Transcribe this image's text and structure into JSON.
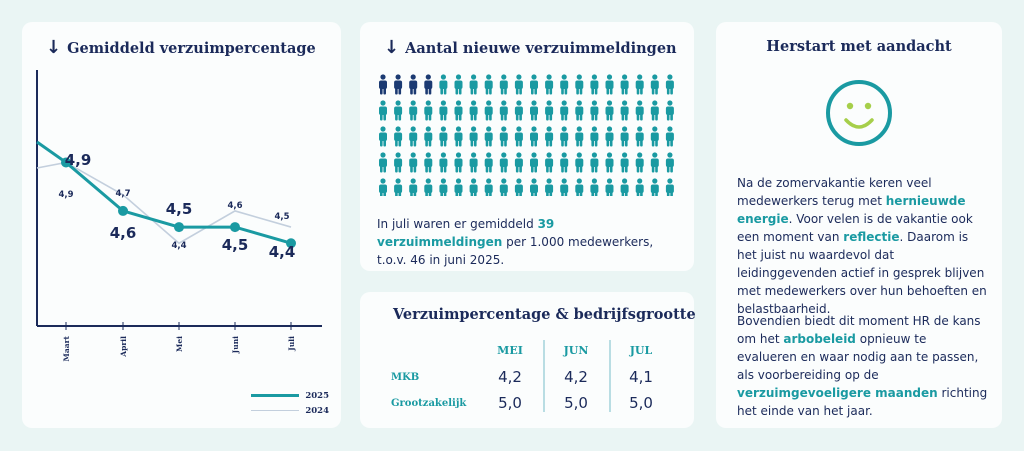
{
  "chart_card": {
    "title": "Gemiddeld verzuimpercentage",
    "arrow": "↓"
  },
  "chart_data": {
    "type": "line",
    "title": "Gemiddeld verzuimpercentage",
    "categories": [
      "Maart",
      "April",
      "Mei",
      "Juni",
      "Juli"
    ],
    "series": [
      {
        "name": "2025",
        "color": "#1a9aa2",
        "values": [
          4.9,
          4.6,
          4.5,
          4.5,
          4.4
        ],
        "labels": [
          "4,9",
          "4,6",
          "4,5",
          "4,5",
          "4,4"
        ]
      },
      {
        "name": "2024",
        "color": "#c3cfdd",
        "values": [
          4.9,
          4.7,
          4.4,
          4.6,
          4.5
        ],
        "labels": [
          "4,9",
          "4,7",
          "4,4",
          "4,6",
          "4,5"
        ]
      }
    ],
    "ylim": [
      3.9,
      5.2
    ],
    "legend": [
      "2025",
      "2024"
    ]
  },
  "people_card": {
    "title": "Aantal nieuwe verzuimmeldingen",
    "arrow": "↓",
    "dark_count": 4,
    "total_count": 100,
    "dark_color": "#1b3a72",
    "light_color": "#1a9aa2",
    "caption_pre": "In juli waren er gemiddeld ",
    "caption_hl": "39 verzuimmeldingen",
    "caption_post": " per 1.000 medewerkers, t.o.v. 46 in juni 2025."
  },
  "table_card": {
    "title": "Verzuimpercentage & bedrijfsgrootte",
    "columns": [
      "MEI",
      "JUN",
      "JUL"
    ],
    "rows": [
      {
        "label": "MKB",
        "values": [
          "4,2",
          "4,2",
          "4,1"
        ]
      },
      {
        "label": "Grootzakelijk",
        "values": [
          "5,0",
          "5,0",
          "5,0"
        ]
      }
    ]
  },
  "text_card": {
    "title": "Herstart met aandacht",
    "icon": "smiley-icon",
    "p1_a": "Na de zomervakantie keren veel medewerkers terug met ",
    "p1_b": "hernieuwde energie",
    "p1_c": ". Voor velen is de vakantie ook een moment van ",
    "p1_d": "reflectie",
    "p1_e": ". Daarom is het juist nu waardevol dat leidinggevenden actief in gesprek blijven met medewerkers over hun behoeften en belastbaarheid.",
    "p2_a": "Bovendien biedt dit moment HR de kans om het ",
    "p2_b": "arbobeleid",
    "p2_c": " opnieuw te evalueren en waar nodig aan te passen, als voorbereiding op de ",
    "p2_d": "verzuimgevoeligere maanden",
    "p2_e": " richting het einde van het jaar."
  },
  "colors": {
    "navy": "#1b2a5a",
    "teal": "#1a9aa2",
    "smiley_yellow": "#a6cf4a"
  }
}
